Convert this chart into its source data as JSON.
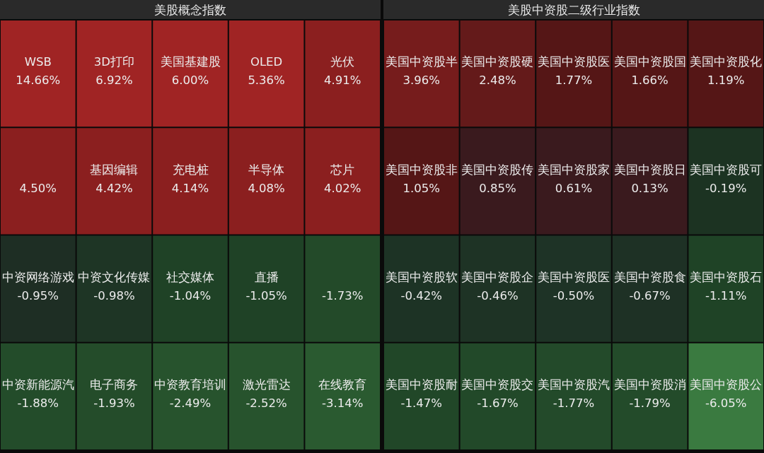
{
  "chart_data": [
    {
      "type": "other",
      "title": "美股概念指数",
      "categories": [
        "WSB",
        "3D打印",
        "美国基建股",
        "OLED",
        "光伏",
        null,
        "基因编辑",
        "充电桩",
        "半导体",
        "芯片",
        "中资网络游戏",
        "中资文化传媒",
        "社交媒体",
        "直播",
        null,
        "中资新能源汽",
        "电子商务",
        "中资教育培训",
        "激光雷达",
        "在线教育"
      ],
      "values": [
        14.66,
        6.92,
        6.0,
        5.36,
        4.91,
        4.5,
        4.42,
        4.14,
        4.08,
        4.02,
        -0.95,
        -0.98,
        -1.04,
        -1.05,
        -1.73,
        -1.88,
        -1.93,
        -2.49,
        -2.52,
        -3.14
      ],
      "value_labels": [
        "14.66%",
        "6.92%",
        "6.00%",
        "5.36%",
        "4.91%",
        "4.50%",
        "4.42%",
        "4.14%",
        "4.08%",
        "4.02%",
        "-0.95%",
        "-0.98%",
        "-1.04%",
        "-1.05%",
        "-1.73%",
        "-1.88%",
        "-1.93%",
        "-2.49%",
        "-2.52%",
        "-3.14%"
      ]
    },
    {
      "type": "other",
      "title": "美股中资股二级行业指数",
      "categories": [
        "美国中资股半",
        "美国中资股硬",
        "美国中资股医",
        "美国中资股国",
        "美国中资股化",
        "美国中资股非",
        "美国中资股传",
        "美国中资股家",
        "美国中资股日",
        "美国中资股可",
        "美国中资股软",
        "美国中资股企",
        "美国中资股医",
        "美国中资股食",
        "美国中资股石",
        "美国中资股耐",
        "美国中资股交",
        "美国中资股汽",
        "美国中资股消",
        "美国中资股公"
      ],
      "values": [
        3.96,
        2.48,
        1.77,
        1.66,
        1.19,
        1.05,
        0.85,
        0.61,
        0.13,
        -0.19,
        -0.42,
        -0.46,
        -0.5,
        -0.67,
        -1.11,
        -1.47,
        -1.67,
        -1.77,
        -1.79,
        -6.05
      ],
      "value_labels": [
        "3.96%",
        "2.48%",
        "1.77%",
        "1.66%",
        "1.19%",
        "1.05%",
        "0.85%",
        "0.61%",
        "0.13%",
        "-0.19%",
        "-0.42%",
        "-0.46%",
        "-0.50%",
        "-0.67%",
        "-1.11%",
        "-1.47%",
        "-1.67%",
        "-1.77%",
        "-1.79%",
        "-6.05%"
      ]
    }
  ]
}
